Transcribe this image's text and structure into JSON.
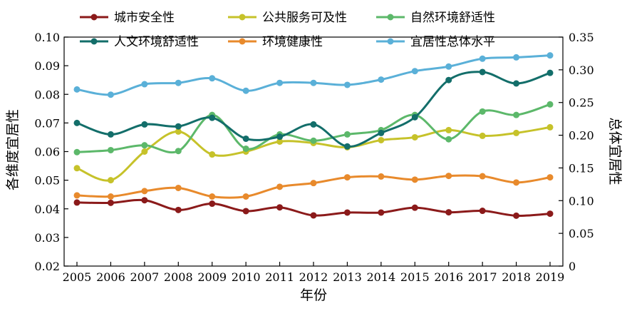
{
  "chart_data": {
    "type": "line",
    "x": [
      "2005",
      "2006",
      "2007",
      "2008",
      "2009",
      "2010",
      "2011",
      "2012",
      "2013",
      "2014",
      "2015",
      "2016",
      "2017",
      "2018",
      "2019"
    ],
    "xlabel": "年份",
    "ylabel_left": "各维度宜居性",
    "ylabel_right": "总体宜居性",
    "ylim_left": [
      0.02,
      0.1
    ],
    "ylim_right": [
      0,
      0.35
    ],
    "yticks_left": [
      "0.02",
      "0.03",
      "0.04",
      "0.05",
      "0.06",
      "0.07",
      "0.08",
      "0.09",
      "0.10"
    ],
    "yticks_right": [
      "0",
      "0.05",
      "0.10",
      "0.15",
      "0.20",
      "0.25",
      "0.30",
      "0.35"
    ],
    "legend_placement": "top",
    "grid": false,
    "series": [
      {
        "name": "城市安全性",
        "axis": "left",
        "color": "#8b1a1a",
        "values": [
          0.0422,
          0.0421,
          0.043,
          0.0396,
          0.0418,
          0.0392,
          0.0405,
          0.0377,
          0.0387,
          0.0387,
          0.0404,
          0.0388,
          0.0393,
          0.0376,
          0.0383
        ]
      },
      {
        "name": "公共服务可及性",
        "axis": "left",
        "color": "#c6c22a",
        "values": [
          0.0542,
          0.05,
          0.06,
          0.067,
          0.059,
          0.06,
          0.0635,
          0.063,
          0.0615,
          0.064,
          0.065,
          0.0675,
          0.0655,
          0.0665,
          0.0685
        ]
      },
      {
        "name": "自然环境舒适性",
        "axis": "left",
        "color": "#5cb86a",
        "values": [
          0.0598,
          0.0605,
          0.0622,
          0.0602,
          0.0728,
          0.061,
          0.066,
          0.0638,
          0.066,
          0.0675,
          0.0728,
          0.0643,
          0.074,
          0.0728,
          0.0765
        ]
      },
      {
        "name": "人文环境舒适性",
        "axis": "left",
        "color": "#136e6a",
        "values": [
          0.07,
          0.066,
          0.0695,
          0.0688,
          0.0718,
          0.0645,
          0.0652,
          0.0695,
          0.0618,
          0.0665,
          0.072,
          0.085,
          0.0878,
          0.0838,
          0.0875
        ]
      },
      {
        "name": "环境健康性",
        "axis": "left",
        "color": "#e88a2c",
        "values": [
          0.0447,
          0.0443,
          0.0462,
          0.0473,
          0.0443,
          0.0443,
          0.0477,
          0.049,
          0.051,
          0.0513,
          0.0502,
          0.0515,
          0.0514,
          0.0492,
          0.051
        ]
      },
      {
        "name": "宜居性总体水平",
        "axis": "right",
        "color": "#5ab0d8",
        "values": [
          0.27,
          0.262,
          0.278,
          0.28,
          0.287,
          0.268,
          0.28,
          0.28,
          0.277,
          0.285,
          0.298,
          0.305,
          0.317,
          0.319,
          0.322
        ]
      }
    ]
  }
}
